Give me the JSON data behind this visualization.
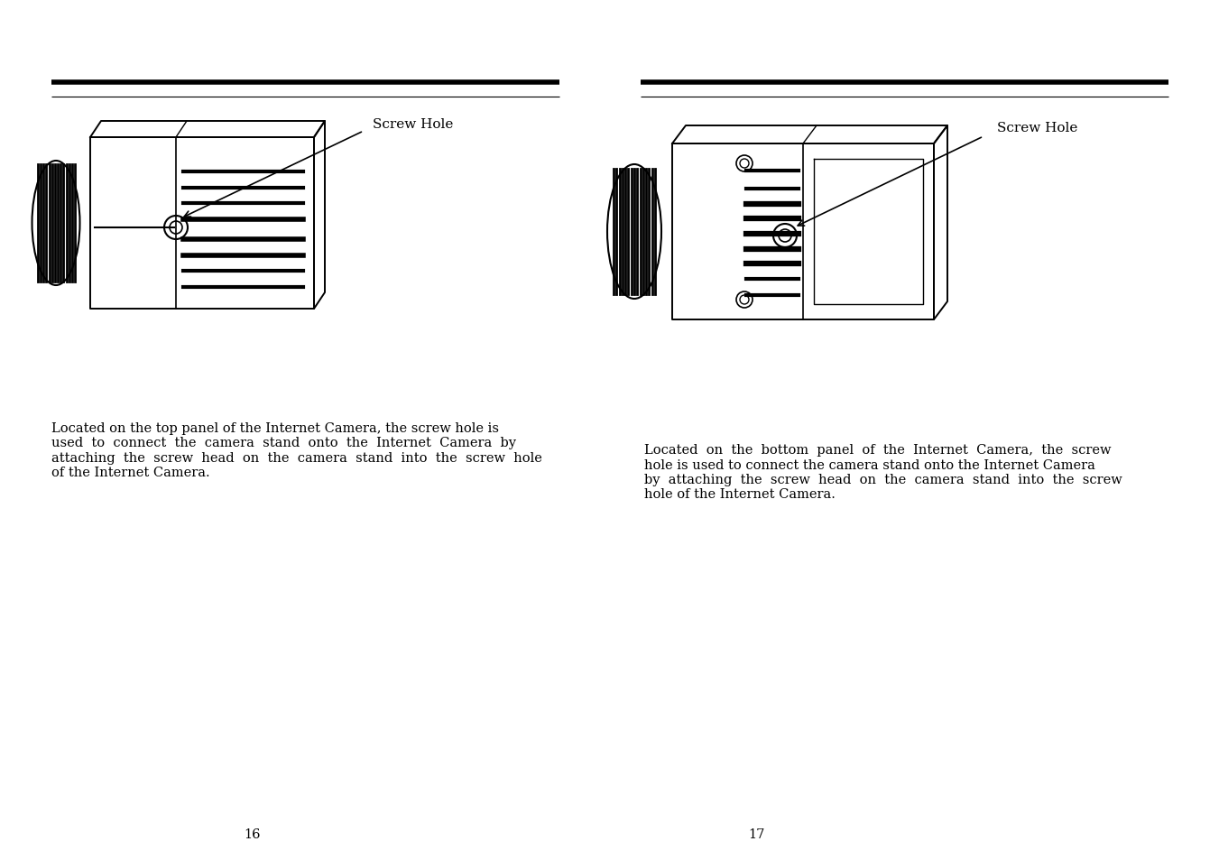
{
  "bg_color": "#ffffff",
  "text_color": "#000000",
  "left_page_number": "16",
  "right_page_number": "17",
  "left_label": "Screw Hole",
  "right_label": "Screw Hole",
  "left_text_line1": "Located on the top panel of the Internet Camera, the screw hole is",
  "left_text_line2": "used  to  connect  the  camera  stand  onto  the  Internet  Camera  by",
  "left_text_line3": "attaching  the  screw  head  on  the  camera  stand  into  the  screw  hole",
  "left_text_line4": "of the Internet Camera.",
  "right_text_line1": "Located  on  the  bottom  panel  of  the  Internet  Camera,  the  screw",
  "right_text_line2": "hole is used to connect the camera stand onto the Internet Camera",
  "right_text_line3": "by  attaching  the  screw  head  on  the  camera  stand  into  the  screw",
  "right_text_line4": "hole of the Internet Camera.",
  "font_size_text": 10.5,
  "font_size_label": 11,
  "thick_rule_lw": 4.0,
  "thin_rule_lw": 0.8
}
